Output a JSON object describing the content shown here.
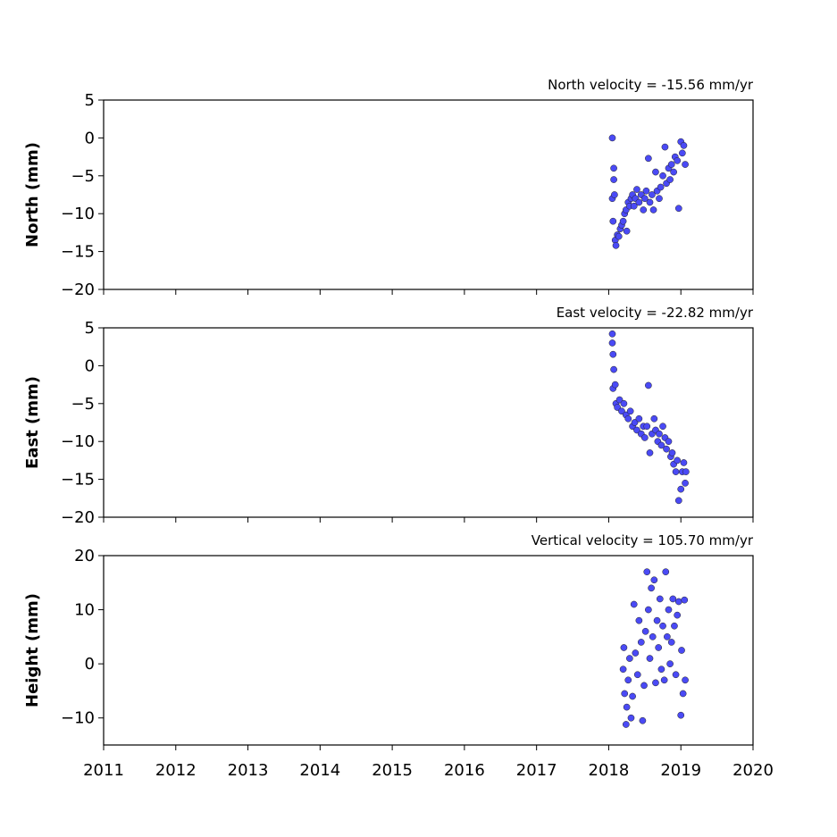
{
  "chart_data": [
    {
      "type": "scatter",
      "title": "North velocity = -15.56 mm/yr",
      "y_label": "North (mm)",
      "color": "#4a4af5",
      "xlim": [
        2011,
        2020
      ],
      "xticks": [
        2011,
        2012,
        2013,
        2014,
        2015,
        2016,
        2017,
        2018,
        2019,
        2020
      ],
      "ylim": [
        -20,
        5
      ],
      "yticks": [
        {
          "value": -20,
          "label": "−20"
        },
        {
          "value": -15,
          "label": "−15"
        },
        {
          "value": -10,
          "label": "−10"
        },
        {
          "value": -5,
          "label": "−5"
        },
        0,
        5
      ],
      "x": [
        2018.05,
        2018.05,
        2018.06,
        2018.07,
        2018.07,
        2018.08,
        2018.09,
        2018.1,
        2018.12,
        2018.14,
        2018.16,
        2018.18,
        2018.2,
        2018.22,
        2018.24,
        2018.25,
        2018.27,
        2018.29,
        2018.31,
        2018.33,
        2018.35,
        2018.37,
        2018.39,
        2018.42,
        2018.45,
        2018.48,
        2018.5,
        2018.52,
        2018.55,
        2018.57,
        2018.6,
        2018.62,
        2018.65,
        2018.67,
        2018.7,
        2018.72,
        2018.75,
        2018.78,
        2018.8,
        2018.83,
        2018.85,
        2018.87,
        2018.9,
        2018.92,
        2018.95,
        2018.97,
        2019.0,
        2019.02,
        2019.04,
        2019.06
      ],
      "values": [
        0,
        -8,
        -11,
        -4,
        -5.5,
        -7.5,
        -13.5,
        -14.2,
        -12.8,
        -13,
        -12,
        -11.5,
        -11,
        -10,
        -9.5,
        -12.3,
        -8.5,
        -9,
        -8,
        -7.5,
        -9,
        -8,
        -6.8,
        -8.5,
        -7.5,
        -9.5,
        -8,
        -7,
        -2.7,
        -8.5,
        -7.5,
        -9.5,
        -4.5,
        -7,
        -8,
        -6.5,
        -5,
        -1.2,
        -6,
        -4,
        -5.5,
        -3.5,
        -4.5,
        -2.5,
        -3,
        -9.3,
        -0.5,
        -2,
        -1,
        -3.5
      ]
    },
    {
      "type": "scatter",
      "title": "East velocity = -22.82 mm/yr",
      "y_label": "East (mm)",
      "color": "#4a4af5",
      "xlim": [
        2011,
        2020
      ],
      "xticks": [
        2011,
        2012,
        2013,
        2014,
        2015,
        2016,
        2017,
        2018,
        2019,
        2020
      ],
      "ylim": [
        -20,
        5
      ],
      "yticks": [
        {
          "value": -20,
          "label": "−20"
        },
        {
          "value": -15,
          "label": "−15"
        },
        {
          "value": -10,
          "label": "−10"
        },
        {
          "value": -5,
          "label": "−5"
        },
        0,
        5
      ],
      "x": [
        2018.05,
        2018.05,
        2018.06,
        2018.06,
        2018.07,
        2018.09,
        2018.1,
        2018.12,
        2018.15,
        2018.18,
        2018.21,
        2018.24,
        2018.27,
        2018.3,
        2018.33,
        2018.36,
        2018.39,
        2018.42,
        2018.45,
        2018.48,
        2018.5,
        2018.53,
        2018.55,
        2018.57,
        2018.6,
        2018.63,
        2018.65,
        2018.68,
        2018.7,
        2018.73,
        2018.75,
        2018.78,
        2018.8,
        2018.83,
        2018.86,
        2018.88,
        2018.9,
        2018.93,
        2018.95,
        2018.97,
        2019.0,
        2019.02,
        2019.04,
        2019.06,
        2019.07
      ],
      "values": [
        4.2,
        3,
        -3,
        1.5,
        -0.5,
        -2.5,
        -5,
        -5.5,
        -4.5,
        -6,
        -5,
        -6.5,
        -7,
        -6,
        -8,
        -7.5,
        -8.5,
        -7,
        -9,
        -8,
        -9.5,
        -8,
        -2.6,
        -11.5,
        -9,
        -7,
        -8.5,
        -10,
        -9,
        -10.5,
        -8,
        -9.5,
        -11,
        -10,
        -12,
        -11.5,
        -13,
        -14,
        -12.5,
        -17.8,
        -16.3,
        -14,
        -12.8,
        -15.5,
        -14
      ]
    },
    {
      "type": "scatter",
      "title": "Vertical velocity = 105.70 mm/yr",
      "y_label": "Height (mm)",
      "color": "#4a4af5",
      "xlim": [
        2011,
        2020
      ],
      "xticks": [
        2011,
        2012,
        2013,
        2014,
        2015,
        2016,
        2017,
        2018,
        2019,
        2020
      ],
      "ylim": [
        -15,
        20
      ],
      "yticks": [
        {
          "value": -10,
          "label": "−10"
        },
        0,
        10,
        20
      ],
      "x": [
        2018.2,
        2018.21,
        2018.22,
        2018.24,
        2018.25,
        2018.27,
        2018.29,
        2018.31,
        2018.33,
        2018.35,
        2018.37,
        2018.4,
        2018.42,
        2018.45,
        2018.47,
        2018.49,
        2018.51,
        2018.53,
        2018.55,
        2018.57,
        2018.59,
        2018.61,
        2018.63,
        2018.65,
        2018.67,
        2018.69,
        2018.71,
        2018.73,
        2018.75,
        2018.77,
        2018.79,
        2018.81,
        2018.83,
        2018.85,
        2018.87,
        2018.89,
        2018.91,
        2018.93,
        2018.95,
        2018.97,
        2019.0,
        2019.01,
        2019.03,
        2019.05,
        2019.06
      ],
      "values": [
        -1,
        3,
        -5.5,
        -11.2,
        -8,
        -3,
        1,
        -10,
        -6,
        11,
        2,
        -2,
        8,
        4,
        -10.5,
        -4,
        6,
        17,
        10,
        1,
        14,
        5,
        15.5,
        -3.5,
        8,
        3,
        12,
        -1,
        7,
        -3,
        17,
        5,
        10,
        0,
        4,
        12,
        7,
        -2,
        9,
        11.5,
        -9.5,
        2.5,
        -5.5,
        11.8,
        -3
      ]
    }
  ]
}
